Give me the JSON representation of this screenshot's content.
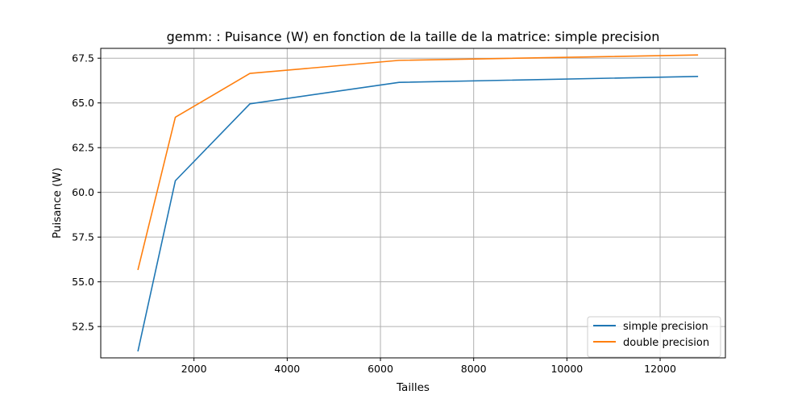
{
  "chart_data": {
    "type": "line",
    "title": "gemm: : Puisance (W) en fonction de la taille de la matrice: simple precision",
    "xlabel": "Tailles",
    "ylabel": "Puisance (W)",
    "x": [
      800,
      1600,
      3200,
      6400,
      12800
    ],
    "xlim": [
      0,
      13400
    ],
    "ylim": [
      50.75,
      68.05
    ],
    "xticks": [
      2000,
      4000,
      6000,
      8000,
      10000,
      12000
    ],
    "yticks": [
      52.5,
      55.0,
      57.5,
      60.0,
      62.5,
      65.0,
      67.5
    ],
    "xtick_labels": [
      "2000",
      "4000",
      "6000",
      "8000",
      "10000",
      "12000"
    ],
    "ytick_labels": [
      "52.5",
      "55.0",
      "57.5",
      "60.0",
      "62.5",
      "65.0",
      "67.5"
    ],
    "grid": true,
    "legend_position": "lower-right",
    "series": [
      {
        "name": "simple precision",
        "color": "#1f77b4",
        "values": [
          51.15,
          60.65,
          64.95,
          66.15,
          66.48
        ]
      },
      {
        "name": "double precision",
        "color": "#ff7f0e",
        "values": [
          55.7,
          64.2,
          66.65,
          67.38,
          67.68
        ]
      }
    ]
  }
}
